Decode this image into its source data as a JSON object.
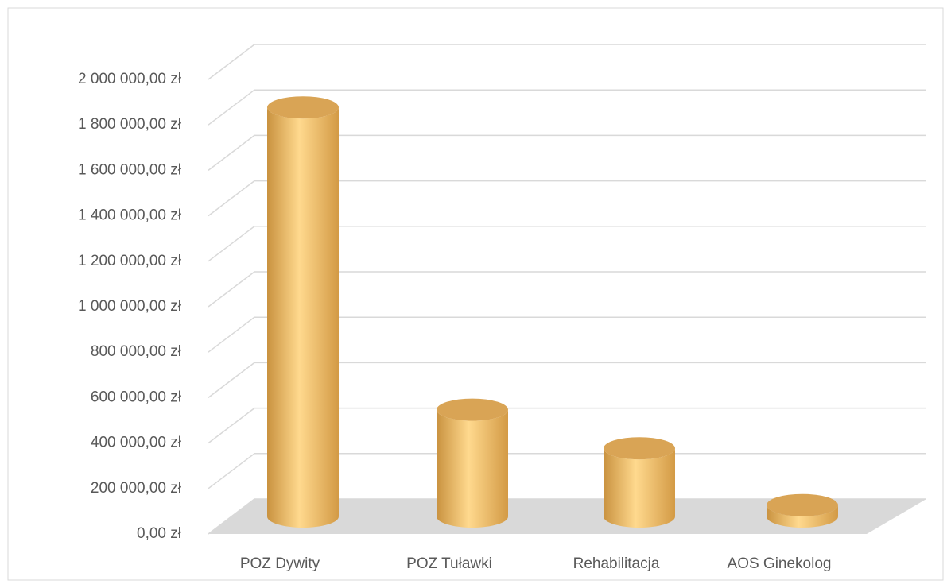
{
  "chart_data": {
    "type": "bar3d",
    "categories": [
      "POZ Dywity",
      "POZ Tuławki",
      "Rehabilitacja",
      "AOS Ginekolog"
    ],
    "values": [
      1800000,
      470000,
      300000,
      50000
    ],
    "color": "#f5c470",
    "ylim": [
      0,
      2000000
    ],
    "yticks": [
      {
        "value": 0,
        "label": "0,00 zł"
      },
      {
        "value": 200000,
        "label": "200 000,00 zł"
      },
      {
        "value": 400000,
        "label": "400 000,00 zł"
      },
      {
        "value": 600000,
        "label": "600 000,00 zł"
      },
      {
        "value": 800000,
        "label": "800 000,00 zł"
      },
      {
        "value": 1000000,
        "label": "1 000 000,00 zł"
      },
      {
        "value": 1200000,
        "label": "1 200 000,00 zł"
      },
      {
        "value": 1400000,
        "label": "1 400 000,00 zł"
      },
      {
        "value": 1600000,
        "label": "1 600 000,00 zł"
      },
      {
        "value": 1800000,
        "label": "1 800 000,00 zł"
      },
      {
        "value": 2000000,
        "label": "2 000 000,00 zł"
      }
    ],
    "grid": true
  }
}
